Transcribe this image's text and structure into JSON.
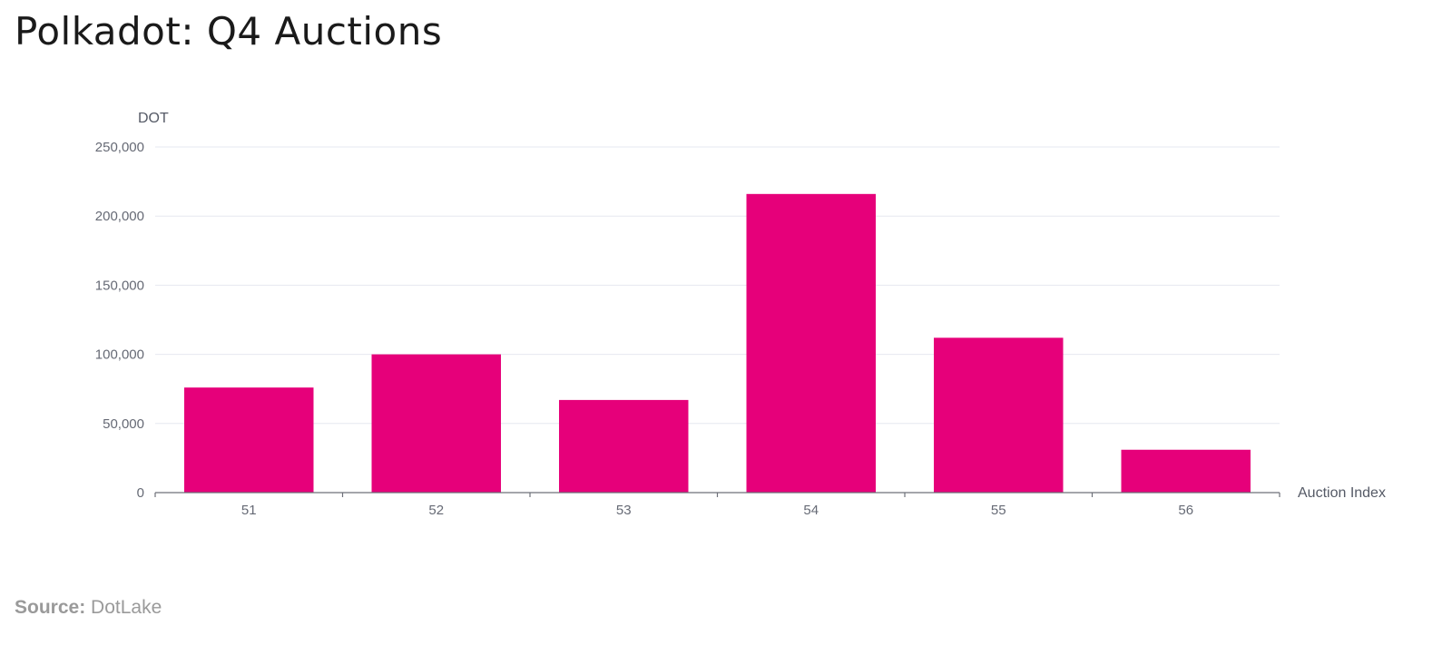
{
  "header": {
    "title": "Polkadot: Q4 Auctions"
  },
  "footer": {
    "source_label": "Source:",
    "source_value": "DotLake"
  },
  "colors": {
    "bar": "#e6007a",
    "grid": "#e6e8f0",
    "axis": "#6e7079"
  },
  "chart_data": {
    "type": "bar",
    "title": "Polkadot: Q4 Auctions",
    "xlabel": "Auction Index",
    "ylabel": "DOT",
    "categories": [
      "51",
      "52",
      "53",
      "54",
      "55",
      "56"
    ],
    "values": [
      76000,
      100000,
      67000,
      216000,
      112000,
      31000
    ],
    "ylim": [
      0,
      250000
    ],
    "yticks": [
      0,
      50000,
      100000,
      150000,
      200000,
      250000
    ],
    "ytick_labels": [
      "0",
      "50,000",
      "100,000",
      "150,000",
      "200,000",
      "250,000"
    ],
    "grid": true,
    "legend": "none"
  }
}
